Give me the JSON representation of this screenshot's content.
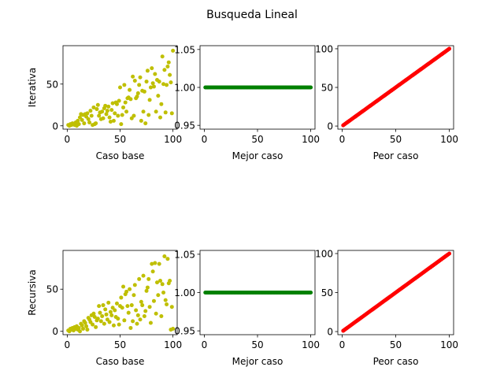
{
  "suptitle": "Busqueda Lineal",
  "colors": {
    "caso_base": "#bfbf00",
    "mejor_caso": "#008000",
    "peor_caso": "#ff0000"
  },
  "chart_data": [
    {
      "type": "scatter",
      "row": "Iterativa",
      "xlabel": "Caso base",
      "ylabel": "Iterativa",
      "xlim": [
        -4,
        104
      ],
      "ylim": [
        -4,
        96
      ],
      "xticks": [
        0,
        50,
        100
      ],
      "yticks": [
        0,
        50
      ],
      "ytick_labels": [
        "0",
        "50"
      ],
      "color_key": "caso_base",
      "x": [
        1,
        2,
        3,
        4,
        5,
        6,
        7,
        8,
        9,
        10,
        11,
        12,
        13,
        14,
        15,
        16,
        17,
        18,
        19,
        20,
        21,
        22,
        23,
        24,
        25,
        26,
        27,
        28,
        29,
        30,
        31,
        32,
        33,
        34,
        35,
        36,
        37,
        38,
        39,
        40,
        41,
        42,
        43,
        44,
        45,
        46,
        47,
        48,
        49,
        50,
        51,
        52,
        53,
        54,
        55,
        56,
        57,
        58,
        59,
        60,
        61,
        62,
        63,
        64,
        65,
        66,
        67,
        68,
        69,
        70,
        71,
        72,
        73,
        74,
        75,
        76,
        77,
        78,
        79,
        80,
        81,
        82,
        83,
        84,
        85,
        86,
        87,
        88,
        89,
        90,
        91,
        92,
        93,
        94,
        95,
        96,
        97,
        98,
        99,
        100
      ],
      "y": [
        1,
        0,
        2,
        1,
        3,
        2,
        1,
        4,
        0,
        6,
        2,
        10,
        14,
        7,
        13,
        3,
        14,
        11,
        15,
        8,
        4,
        18,
        12,
        1,
        22,
        2,
        3,
        20,
        25,
        12,
        16,
        8,
        17,
        9,
        21,
        24,
        14,
        18,
        23,
        10,
        5,
        19,
        27,
        6,
        15,
        28,
        26,
        12,
        30,
        46,
        2,
        13,
        22,
        49,
        28,
        17,
        33,
        34,
        43,
        32,
        9,
        59,
        12,
        54,
        33,
        35,
        39,
        49,
        58,
        6,
        42,
        17,
        41,
        3,
        53,
        66,
        13,
        31,
        46,
        69,
        51,
        47,
        62,
        17,
        55,
        36,
        53,
        10,
        26,
        83,
        50,
        67,
        16,
        49,
        71,
        76,
        61,
        52,
        15,
        90
      ]
    },
    {
      "type": "scatter",
      "row": "Iterativa",
      "xlabel": "Mejor caso",
      "xlim": [
        -4,
        104
      ],
      "ylim": [
        0.945,
        1.055
      ],
      "xticks": [
        0,
        50,
        100
      ],
      "yticks": [
        0.95,
        1.0,
        1.05
      ],
      "ytick_labels": [
        "0.95",
        "1.00",
        "1.05"
      ],
      "color_key": "mejor_caso",
      "x_start": 1,
      "x_end": 100,
      "constant_y": 1
    },
    {
      "type": "scatter",
      "row": "Iterativa",
      "xlabel": "Peor caso",
      "xlim": [
        -4,
        104
      ],
      "ylim": [
        -4,
        104
      ],
      "xticks": [
        0,
        50,
        100
      ],
      "yticks": [
        0,
        50,
        100
      ],
      "ytick_labels": [
        "0",
        "50",
        "100"
      ],
      "color_key": "peor_caso",
      "x_start": 1,
      "x_end": 100,
      "identity": true
    },
    {
      "type": "scatter",
      "row": "Recursiva",
      "xlabel": "Caso base",
      "ylabel": "Recursiva",
      "xlim": [
        -4,
        104
      ],
      "ylim": [
        -4,
        96
      ],
      "xticks": [
        0,
        50,
        100
      ],
      "yticks": [
        0,
        50
      ],
      "ytick_labels": [
        "0",
        "50"
      ],
      "color_key": "caso_base",
      "x": [
        1,
        2,
        3,
        4,
        5,
        6,
        7,
        8,
        9,
        10,
        11,
        12,
        13,
        14,
        15,
        16,
        17,
        18,
        19,
        20,
        21,
        22,
        23,
        24,
        25,
        26,
        27,
        28,
        29,
        30,
        31,
        32,
        33,
        34,
        35,
        36,
        37,
        38,
        39,
        40,
        41,
        42,
        43,
        44,
        45,
        46,
        47,
        48,
        49,
        50,
        51,
        52,
        53,
        54,
        55,
        56,
        57,
        58,
        59,
        60,
        61,
        62,
        63,
        64,
        65,
        66,
        67,
        68,
        69,
        70,
        71,
        72,
        73,
        74,
        75,
        76,
        77,
        78,
        79,
        80,
        81,
        82,
        83,
        84,
        85,
        86,
        87,
        88,
        89,
        90,
        91,
        92,
        93,
        94,
        95,
        96,
        97,
        98,
        99,
        100
      ],
      "y": [
        1,
        0,
        3,
        2,
        4,
        1,
        5,
        3,
        6,
        2,
        4,
        0,
        9,
        7,
        3,
        12,
        10,
        6,
        2,
        16,
        14,
        11,
        19,
        8,
        21,
        17,
        5,
        13,
        15,
        30,
        22,
        12,
        18,
        31,
        9,
        26,
        20,
        14,
        34,
        11,
        23,
        19,
        28,
        7,
        25,
        17,
        33,
        15,
        8,
        30,
        40,
        28,
        53,
        13,
        44,
        47,
        30,
        22,
        50,
        4,
        31,
        12,
        43,
        55,
        25,
        9,
        19,
        62,
        14,
        35,
        31,
        66,
        18,
        24,
        48,
        52,
        62,
        29,
        10,
        80,
        71,
        36,
        81,
        21,
        58,
        43,
        80,
        60,
        18,
        56,
        46,
        89,
        37,
        32,
        86,
        57,
        60,
        2,
        29,
        3
      ]
    },
    {
      "type": "scatter",
      "row": "Recursiva",
      "xlabel": "Mejor caso",
      "xlim": [
        -4,
        104
      ],
      "ylim": [
        0.945,
        1.055
      ],
      "xticks": [
        0,
        50,
        100
      ],
      "yticks": [
        0.95,
        1.0,
        1.05
      ],
      "ytick_labels": [
        "0.95",
        "1.00",
        "1.05"
      ],
      "color_key": "mejor_caso",
      "x_start": 1,
      "x_end": 100,
      "constant_y": 1
    },
    {
      "type": "scatter",
      "row": "Recursiva",
      "xlabel": "Peor caso",
      "xlim": [
        -4,
        104
      ],
      "ylim": [
        -4,
        104
      ],
      "xticks": [
        0,
        50,
        100
      ],
      "yticks": [
        0,
        50,
        100
      ],
      "ytick_labels": [
        "0",
        "50",
        "100"
      ],
      "color_key": "peor_caso",
      "x_start": 1,
      "x_end": 100,
      "identity": true
    }
  ]
}
